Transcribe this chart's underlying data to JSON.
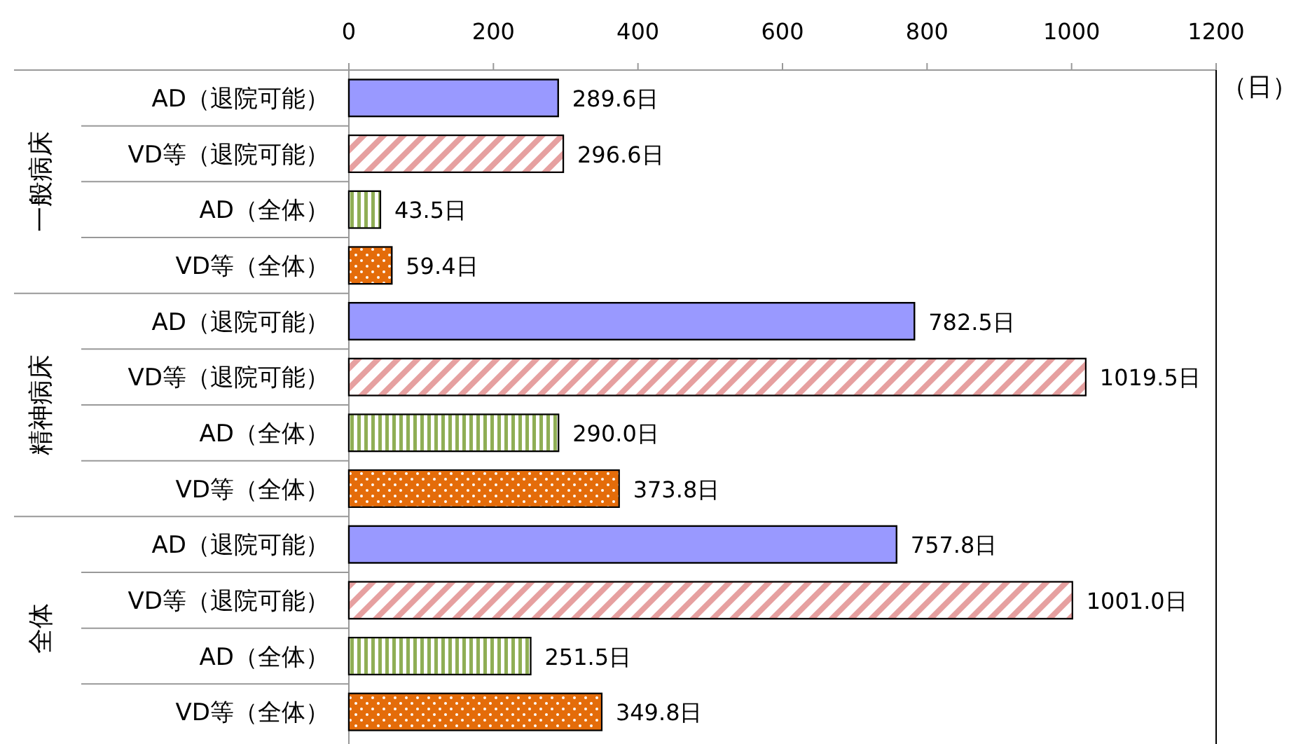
{
  "chart_data": {
    "type": "bar",
    "orientation": "horizontal",
    "xlabel": "（日）",
    "categories": [
      "AD（退院可能）",
      "VD等（退院可能）",
      "AD（全体）",
      "VD等（全体）",
      "AD（退院可能）",
      "VD等（退院可能）",
      "AD（全体）",
      "VD等（全体）",
      "AD（退院可能）",
      "VD等（退院可能）",
      "AD（全体）",
      "VD等（全体）"
    ],
    "values": [
      289.6,
      296.6,
      43.5,
      59.4,
      782.5,
      1019.5,
      290.0,
      373.8,
      757.8,
      1001.0,
      251.5,
      349.8
    ],
    "value_labels": [
      "289.6日",
      "296.6日",
      "43.5日",
      "59.4日",
      "782.5日",
      "1019.5日",
      "290.0日",
      "373.8日",
      "757.8日",
      "1001.0日",
      "251.5日",
      "349.8日"
    ],
    "colors": [
      "#9999ff",
      "#e6a0a0",
      "#8fae55",
      "#e46c0a",
      "#9999ff",
      "#e6a0a0",
      "#8fae55",
      "#e46c0a",
      "#9999ff",
      "#e6a0a0",
      "#8fae55",
      "#e46c0a"
    ],
    "annotations": [
      "一般病床",
      "精神病床",
      "全体"
    ],
    "xlim": [
      0,
      1200
    ],
    "xticks": [
      0,
      200,
      400,
      600,
      800,
      1000,
      1200
    ],
    "grid": false
  }
}
